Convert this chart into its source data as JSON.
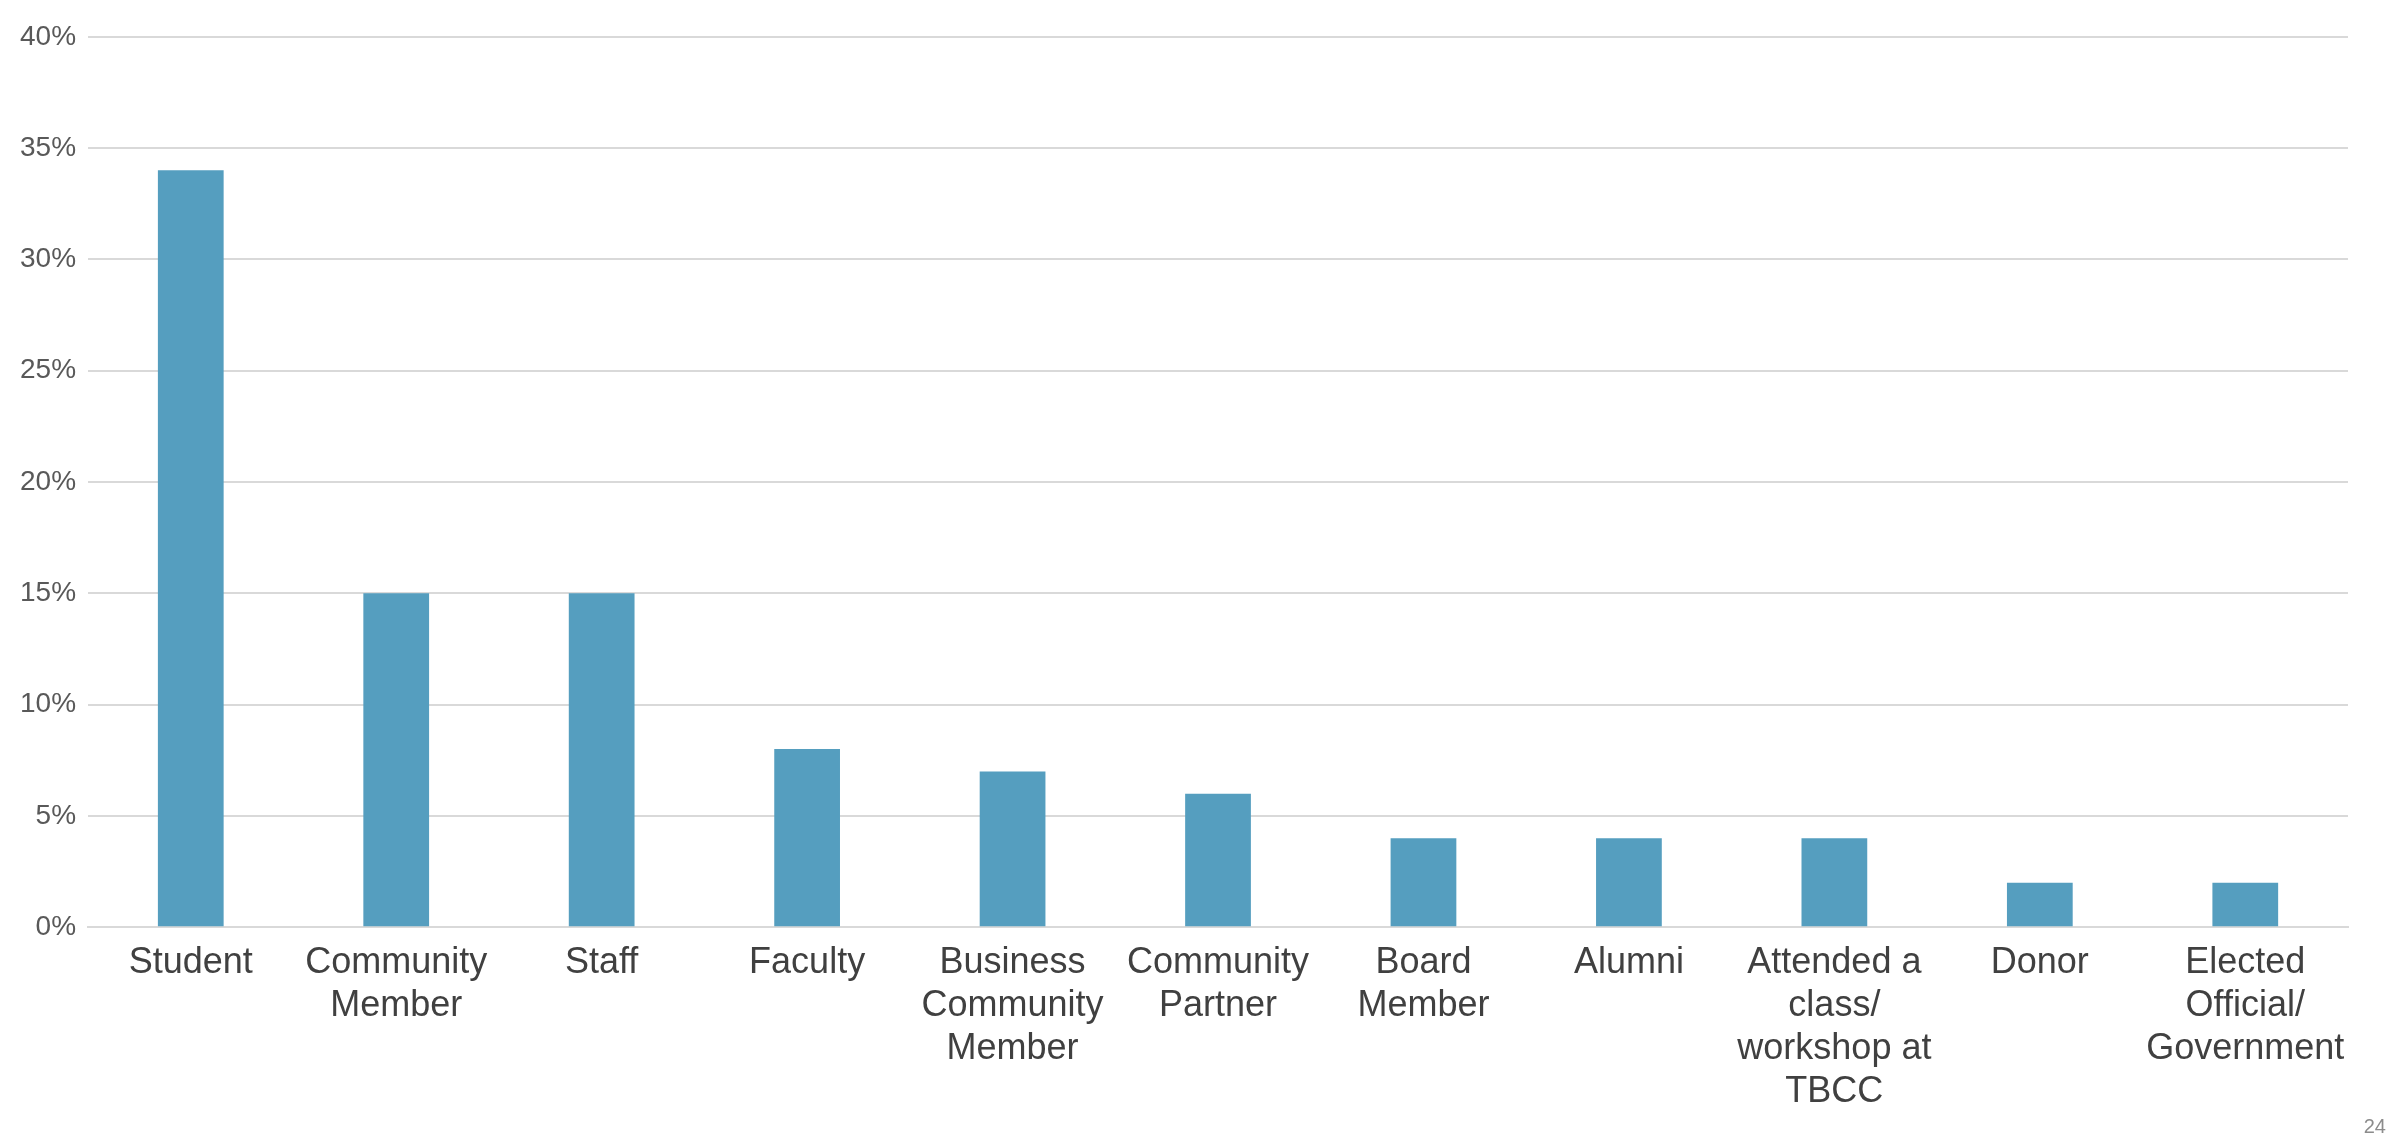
{
  "chart_data": {
    "type": "bar",
    "categories": [
      "Student",
      "Community Member",
      "Staff",
      "Faculty",
      "Business Community Member",
      "Community Partner",
      "Board Member",
      "Alumni",
      "Attended a class/ workshop at TBCC",
      "Donor",
      "Elected Official/ Government"
    ],
    "values": [
      34,
      15,
      15,
      8,
      7,
      6,
      4,
      4,
      4,
      2,
      2
    ],
    "color": "#559ebf",
    "ylim": [
      0,
      40
    ],
    "yticks": [
      {
        "value": 0,
        "label": "0%"
      },
      {
        "value": 5,
        "label": "5%"
      },
      {
        "value": 10,
        "label": "10%"
      },
      {
        "value": 15,
        "label": "15%"
      },
      {
        "value": 20,
        "label": "20%"
      },
      {
        "value": 25,
        "label": "25%"
      },
      {
        "value": 30,
        "label": "30%"
      },
      {
        "value": 35,
        "label": "35%"
      },
      {
        "value": 40,
        "label": "40%"
      }
    ],
    "grid": "y",
    "annotations": [
      "24"
    ]
  }
}
